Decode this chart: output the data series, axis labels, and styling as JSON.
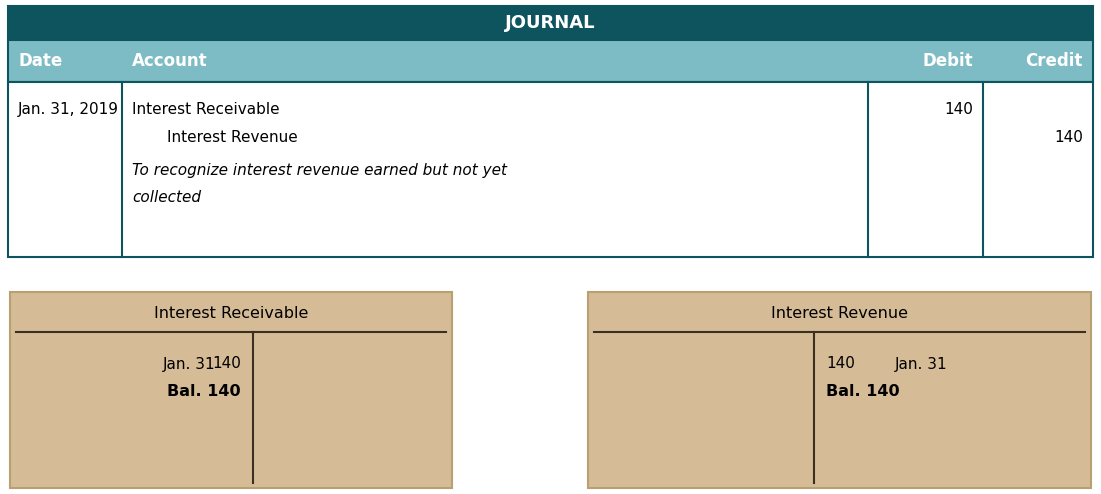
{
  "title": "JOURNAL",
  "title_bg": "#0d545f",
  "title_color": "#ffffff",
  "header_bg": "#7dbcc4",
  "header_color": "#ffffff",
  "header_labels": [
    "Date",
    "Account",
    "Debit",
    "Credit"
  ],
  "row_bg": "#ffffff",
  "row_border": "#0d545f",
  "date": "Jan. 31, 2019",
  "debit_account": "Interest Receivable",
  "credit_account_indent": "      Interest Revenue",
  "explanation_line1": "To recognize interest revenue earned but not yet",
  "explanation_line2": "collected",
  "debit_amount": "140",
  "credit_amount": "140",
  "t_account_bg": "#d6bc96",
  "t_account_border": "#b8a070",
  "t_left_title": "Interest Receivable",
  "t_right_title": "Interest Revenue",
  "t_left_debit_date": "Jan. 31",
  "t_left_debit_amount": "140",
  "t_left_balance": "Bal. 140",
  "t_right_credit_amount": "140",
  "t_right_credit_date": "Jan. 31",
  "t_right_balance": "Bal. 140",
  "fig_width": 11.01,
  "fig_height": 4.94,
  "dpi": 100
}
